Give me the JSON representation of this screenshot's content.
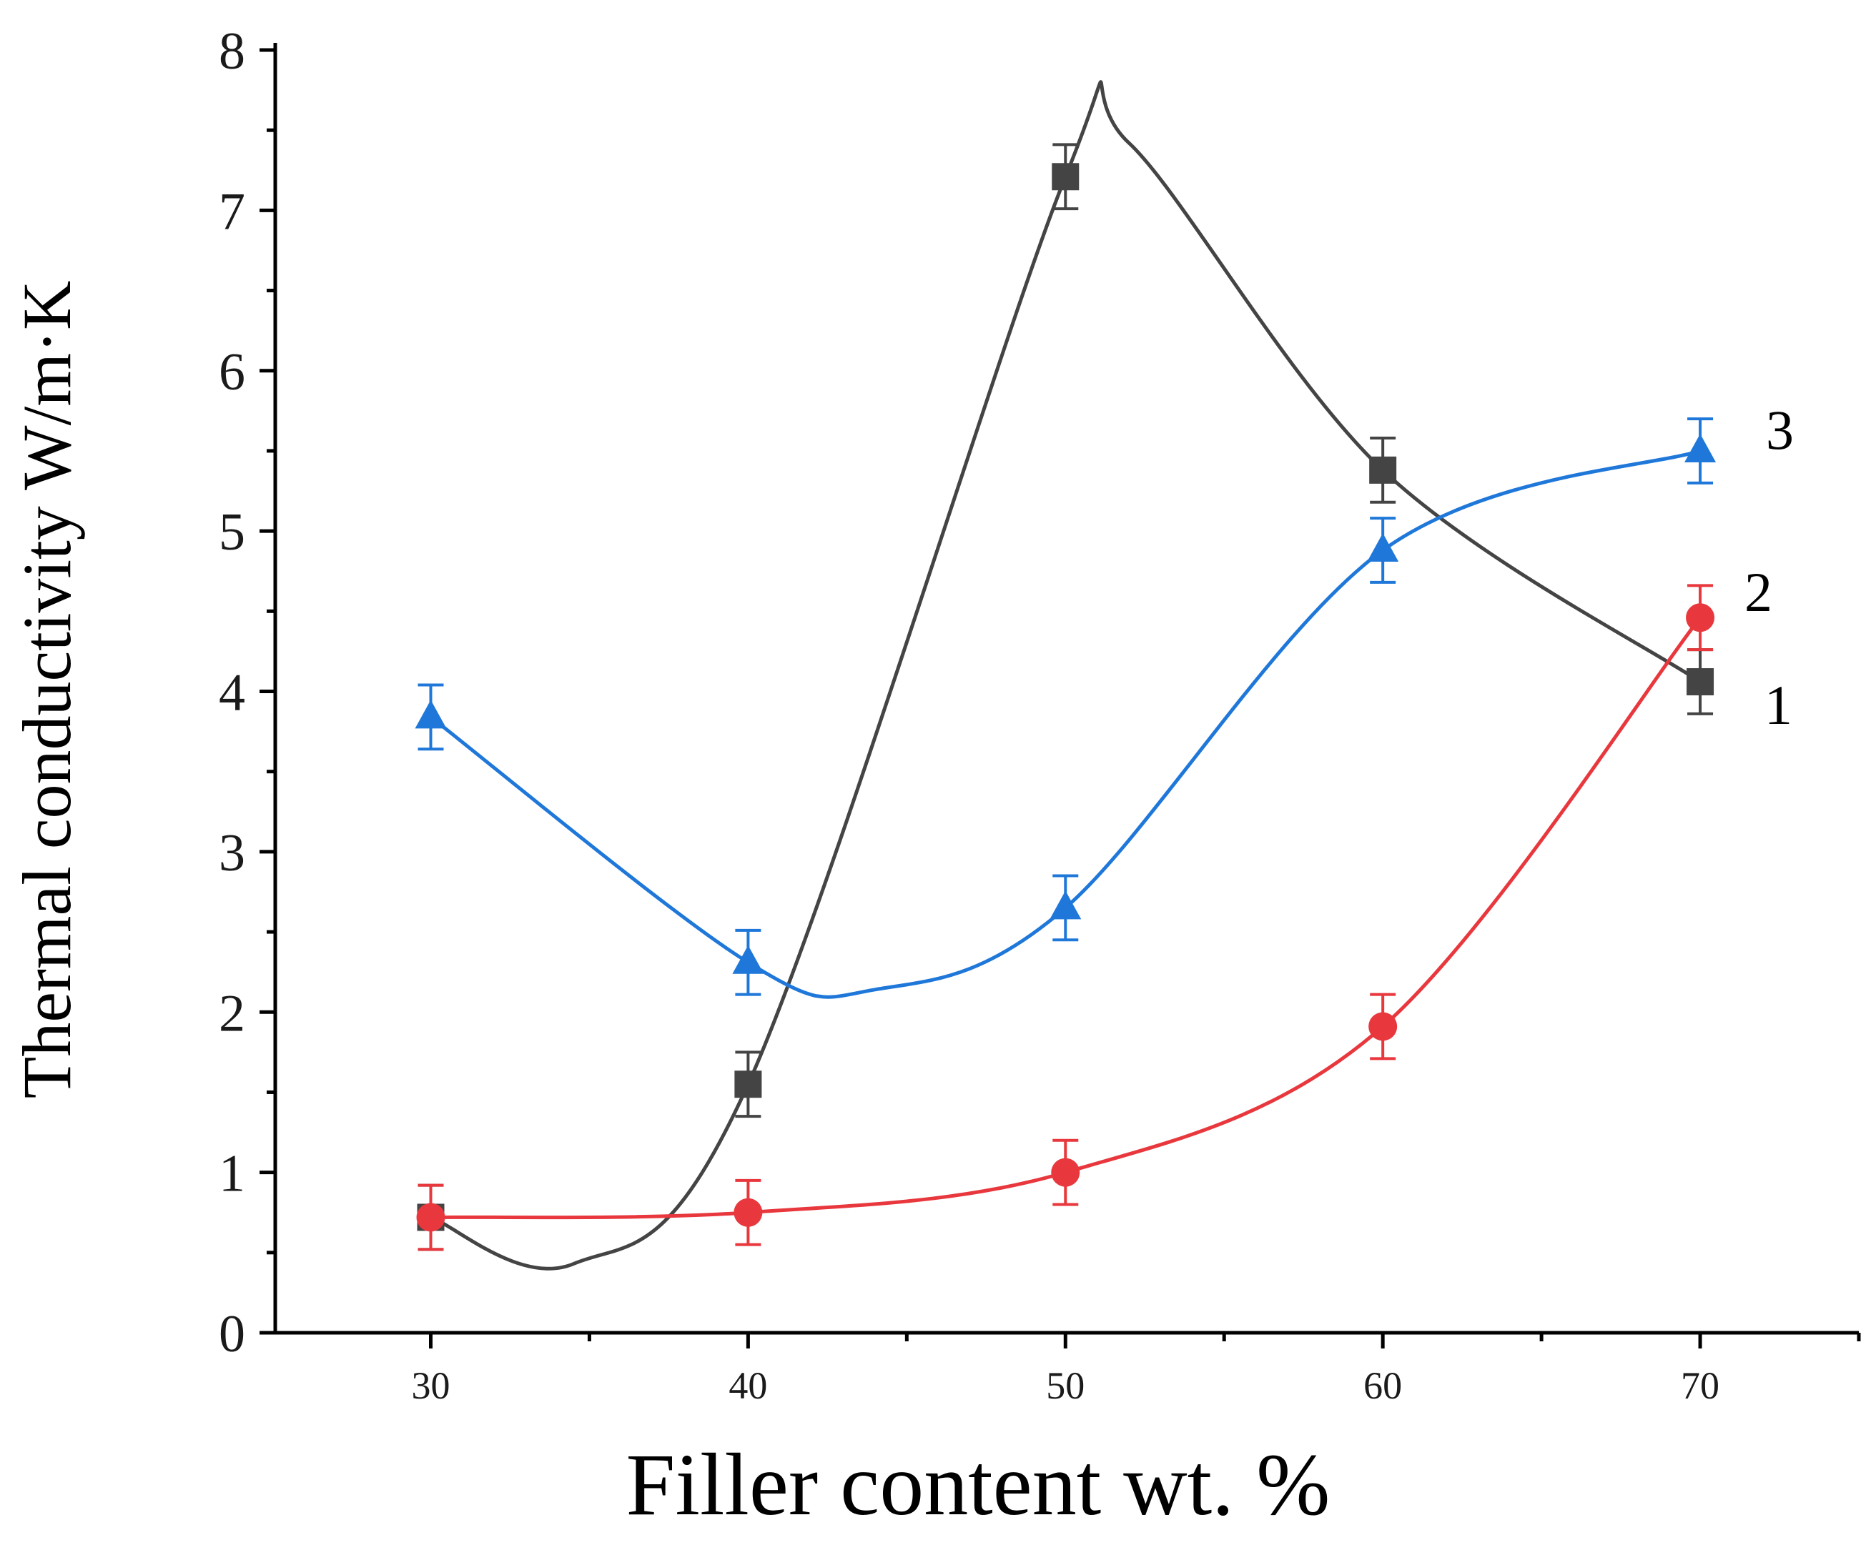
{
  "chart_data": {
    "type": "line",
    "title": "",
    "xlabel": "Filler content wt. %",
    "ylabel": "Thermal conductivity W/m·K",
    "xlim": [
      25.1,
      75.0
    ],
    "ylim": [
      0,
      8
    ],
    "x": [
      30,
      40,
      50,
      60,
      70
    ],
    "x_tick_labels": [
      "30",
      "40",
      "50",
      "60",
      "70"
    ],
    "y_ticks": [
      0,
      1,
      2,
      3,
      4,
      5,
      6,
      7,
      8
    ],
    "y_tick_labels": [
      "0",
      "1",
      "2",
      "3",
      "4",
      "5",
      "6",
      "7",
      "8"
    ],
    "grid": false,
    "series": [
      {
        "name": "1",
        "marker": "square",
        "color": "#444444",
        "values": [
          0.72,
          1.55,
          7.21,
          5.38,
          4.06
        ],
        "errors": [
          0.2,
          0.2,
          0.2,
          0.2,
          0.2
        ],
        "curve_via": [
          {
            "x": 34.5,
            "y": 0.43
          },
          {
            "x": 52.0,
            "y": 7.42
          }
        ]
      },
      {
        "name": "2",
        "marker": "circle",
        "color": "#e8383d",
        "values": [
          0.72,
          0.75,
          1.0,
          1.91,
          4.46
        ],
        "errors": [
          0.2,
          0.2,
          0.2,
          0.2,
          0.2
        ]
      },
      {
        "name": "3",
        "marker": "triangle",
        "color": "#1f78d9",
        "values": [
          3.84,
          2.31,
          2.65,
          4.88,
          5.5
        ],
        "errors": [
          0.2,
          0.2,
          0.2,
          0.2,
          0.2
        ],
        "curve_via": [
          {
            "x": 44.0,
            "y": 2.14
          }
        ]
      }
    ]
  }
}
